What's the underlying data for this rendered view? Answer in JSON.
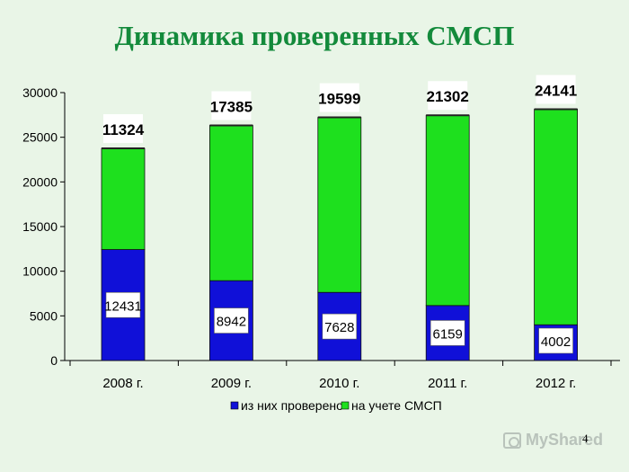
{
  "slide": {
    "title": "Динамика проверенных СМСП",
    "page_number": "4",
    "watermark": "MyShared"
  },
  "colors": {
    "background": "#e9f5e7",
    "title": "#138a3b",
    "checked": "#1010d8",
    "registered": "#1ee01e",
    "label_box": "#ffffff"
  },
  "chart_data": {
    "type": "bar",
    "stacked": true,
    "categories": [
      "2008 г.",
      "2009 г.",
      "2010 г.",
      "2011 г.",
      "2012 г."
    ],
    "series": [
      {
        "name": "из них проверено",
        "values": [
          12431,
          8942,
          7628,
          6159,
          4002
        ]
      },
      {
        "name": "на учете СМСП",
        "values": [
          11324,
          17385,
          19599,
          21302,
          24141
        ]
      }
    ],
    "y_ticks": [
      0,
      5000,
      10000,
      15000,
      20000,
      25000,
      30000
    ],
    "ylim": [
      0,
      30000
    ],
    "legend_position": "bottom",
    "grid": false
  }
}
